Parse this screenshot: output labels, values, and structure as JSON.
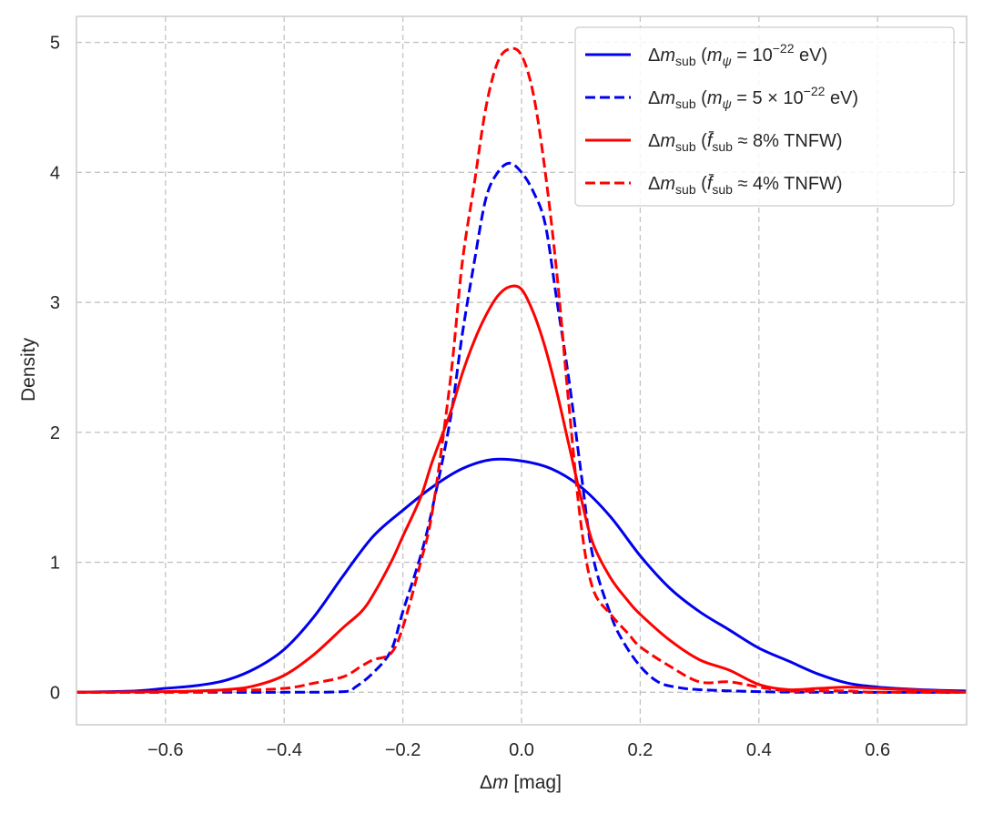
{
  "chart_data": {
    "type": "line",
    "title": "",
    "xlabel": "Δm [mag]",
    "ylabel": "Density",
    "xlim": [
      -0.75,
      0.75
    ],
    "ylim": [
      -0.25,
      5.2
    ],
    "grid": true,
    "legend_position": "top-right",
    "x_ticks": [
      -0.6,
      -0.4,
      -0.2,
      0.0,
      0.2,
      0.4,
      0.6
    ],
    "x_tick_labels": [
      "−0.6",
      "−0.4",
      "−0.2",
      "0.0",
      "0.2",
      "0.4",
      "0.6"
    ],
    "y_ticks": [
      0,
      1,
      2,
      3,
      4,
      5
    ],
    "y_tick_labels": [
      "0",
      "1",
      "2",
      "3",
      "4",
      "5"
    ],
    "series": [
      {
        "name": "Δm_sub (m_ψ = 10^-22 eV)",
        "color": "#0000ee",
        "dash": "solid",
        "x": [
          -0.75,
          -0.65,
          -0.6,
          -0.55,
          -0.5,
          -0.45,
          -0.4,
          -0.35,
          -0.3,
          -0.25,
          -0.2,
          -0.15,
          -0.1,
          -0.05,
          0.0,
          0.05,
          0.1,
          0.15,
          0.2,
          0.25,
          0.3,
          0.35,
          0.4,
          0.45,
          0.5,
          0.55,
          0.6,
          0.65,
          0.7,
          0.75
        ],
        "y": [
          0.0,
          0.01,
          0.03,
          0.05,
          0.09,
          0.18,
          0.33,
          0.58,
          0.9,
          1.2,
          1.4,
          1.58,
          1.72,
          1.79,
          1.78,
          1.72,
          1.58,
          1.35,
          1.05,
          0.8,
          0.62,
          0.48,
          0.34,
          0.24,
          0.14,
          0.07,
          0.04,
          0.025,
          0.015,
          0.01
        ]
      },
      {
        "name": "Δm_sub (m_ψ = 5 × 10^-22 eV)",
        "color": "#0000ee",
        "dash": "dashed",
        "x": [
          -0.75,
          -0.5,
          -0.4,
          -0.3,
          -0.28,
          -0.25,
          -0.22,
          -0.2,
          -0.17,
          -0.15,
          -0.12,
          -0.1,
          -0.08,
          -0.06,
          -0.04,
          -0.02,
          0.0,
          0.02,
          0.04,
          0.06,
          0.08,
          0.1,
          0.12,
          0.15,
          0.17,
          0.2,
          0.23,
          0.26,
          0.3,
          0.4,
          0.5,
          0.75
        ],
        "y": [
          0.0,
          0.0,
          0.0,
          0.005,
          0.04,
          0.15,
          0.32,
          0.62,
          1.05,
          1.42,
          2.1,
          2.75,
          3.3,
          3.8,
          4.0,
          4.07,
          4.0,
          3.85,
          3.6,
          3.0,
          2.4,
          1.7,
          1.05,
          0.6,
          0.4,
          0.2,
          0.08,
          0.04,
          0.02,
          0.005,
          0.0,
          0.0
        ]
      },
      {
        "name": "Δm_sub (f̄_sub ≈ 8% TNFW)",
        "color": "#ff0000",
        "dash": "solid",
        "x": [
          -0.75,
          -0.6,
          -0.5,
          -0.45,
          -0.4,
          -0.35,
          -0.3,
          -0.27,
          -0.25,
          -0.22,
          -0.2,
          -0.17,
          -0.15,
          -0.12,
          -0.1,
          -0.08,
          -0.06,
          -0.04,
          -0.02,
          0.0,
          0.02,
          0.04,
          0.06,
          0.08,
          0.1,
          0.12,
          0.15,
          0.18,
          0.2,
          0.25,
          0.3,
          0.35,
          0.4,
          0.45,
          0.5,
          0.55,
          0.6,
          0.65,
          0.75
        ],
        "y": [
          0.0,
          0.005,
          0.02,
          0.05,
          0.13,
          0.29,
          0.5,
          0.62,
          0.75,
          1.0,
          1.2,
          1.5,
          1.78,
          2.15,
          2.45,
          2.7,
          2.9,
          3.05,
          3.12,
          3.1,
          2.92,
          2.65,
          2.3,
          1.9,
          1.5,
          1.15,
          0.88,
          0.7,
          0.6,
          0.4,
          0.25,
          0.17,
          0.06,
          0.02,
          0.03,
          0.04,
          0.03,
          0.02,
          0.0
        ]
      },
      {
        "name": "Δm_sub (f̄_sub ≈ 4% TNFW)",
        "color": "#ff0000",
        "dash": "dashed",
        "x": [
          -0.75,
          -0.6,
          -0.5,
          -0.4,
          -0.35,
          -0.3,
          -0.27,
          -0.25,
          -0.22,
          -0.2,
          -0.17,
          -0.15,
          -0.12,
          -0.1,
          -0.08,
          -0.06,
          -0.04,
          -0.02,
          0.0,
          0.02,
          0.04,
          0.06,
          0.08,
          0.1,
          0.12,
          0.15,
          0.18,
          0.2,
          0.25,
          0.3,
          0.35,
          0.4,
          0.45,
          0.5,
          0.55,
          0.6,
          0.75
        ],
        "y": [
          0.0,
          0.0,
          0.01,
          0.03,
          0.07,
          0.12,
          0.2,
          0.25,
          0.3,
          0.5,
          1.0,
          1.4,
          2.4,
          3.3,
          3.9,
          4.5,
          4.85,
          4.95,
          4.9,
          4.6,
          4.0,
          3.2,
          2.2,
          1.3,
          0.8,
          0.6,
          0.45,
          0.35,
          0.2,
          0.08,
          0.08,
          0.04,
          0.01,
          0.01,
          0.01,
          0.0,
          0.0
        ]
      }
    ],
    "legend": [
      {
        "prefix": "Δm",
        "sub": "sub",
        "paren": " (m",
        "psi_sub": "ψ",
        "rest": " = 10",
        "sup": "−22",
        "tail": " eV)",
        "color": "#0000ee",
        "dash": "solid"
      },
      {
        "prefix": "Δm",
        "sub": "sub",
        "paren": " (m",
        "psi_sub": "ψ",
        "rest": " = 5 × 10",
        "sup": "−22",
        "tail": " eV)",
        "color": "#0000ee",
        "dash": "dashed"
      },
      {
        "prefix": "Δm",
        "sub": "sub",
        "paren": " (f̄",
        "psi_sub": "sub",
        "rest": " ≈ 8% TNFW)",
        "sup": "",
        "tail": "",
        "color": "#ff0000",
        "dash": "solid"
      },
      {
        "prefix": "Δm",
        "sub": "sub",
        "paren": " (f̄",
        "psi_sub": "sub",
        "rest": " ≈ 4% TNFW)",
        "sup": "",
        "tail": "",
        "color": "#ff0000",
        "dash": "dashed"
      }
    ]
  }
}
